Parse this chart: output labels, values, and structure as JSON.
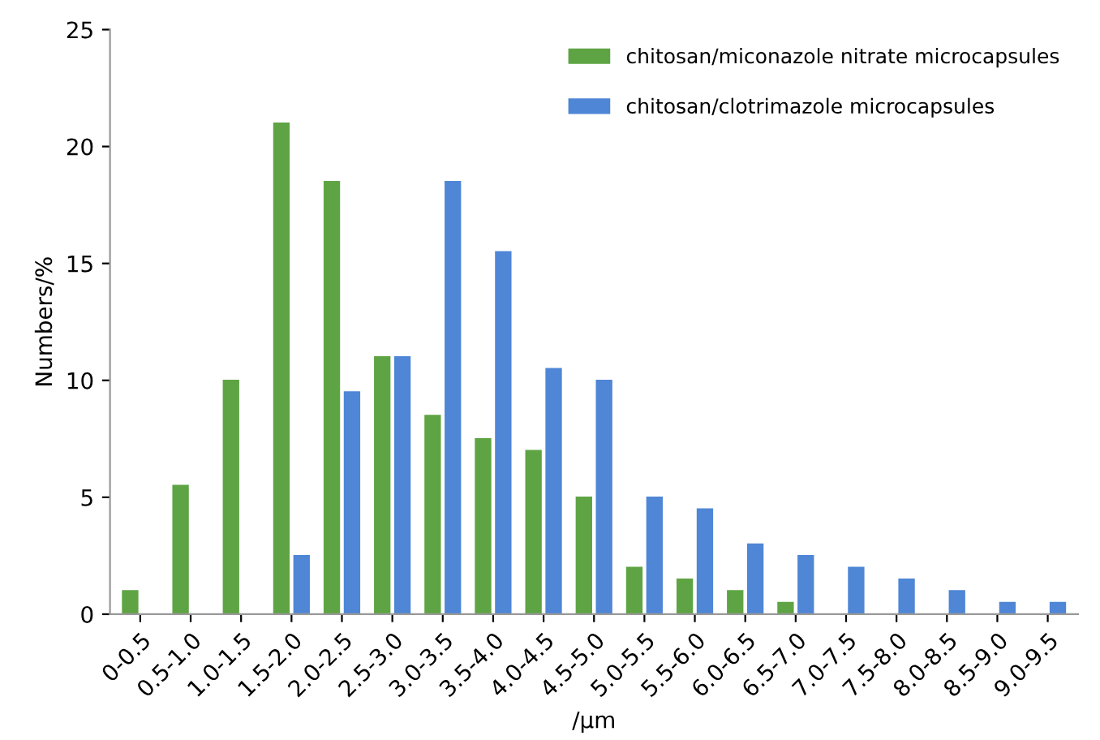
{
  "chart_data": {
    "type": "bar",
    "xlabel": "/μm",
    "ylabel": "Numbers/%",
    "categories": [
      "0-0.5",
      "0.5-1.0",
      "1.0-1.5",
      "1.5-2.0",
      "2.0-2.5",
      "2.5-3.0",
      "3.0-3.5",
      "3.5-4.0",
      "4.0-4.5",
      "4.5-5.0",
      "5.0-5.5",
      "5.5-6.0",
      "6.0-6.5",
      "6.5-7.0",
      "7.0-7.5",
      "7.5-8.0",
      "8.0-8.5",
      "8.5-9.0",
      "9.0-9.5"
    ],
    "series": [
      {
        "name": "chitosan/miconazole nitrate microcapsules",
        "color": "#5fa444",
        "values": [
          1,
          5.5,
          10,
          21,
          18.5,
          11,
          8.5,
          7.5,
          7,
          5,
          2,
          1.5,
          1,
          0.5,
          0,
          0,
          0,
          0,
          0
        ]
      },
      {
        "name": "chitosan/clotrimazole microcapsules",
        "color": "#4f86d6",
        "values": [
          0,
          0,
          0,
          2.5,
          9.5,
          11,
          18.5,
          15.5,
          10.5,
          10,
          5,
          4.5,
          3,
          2.5,
          2,
          1.5,
          1,
          0.5,
          0.5
        ]
      }
    ],
    "ylim": [
      0,
      25
    ],
    "yticks": [
      0,
      5,
      10,
      15,
      20,
      25
    ],
    "grid": false,
    "legend": "top right"
  }
}
